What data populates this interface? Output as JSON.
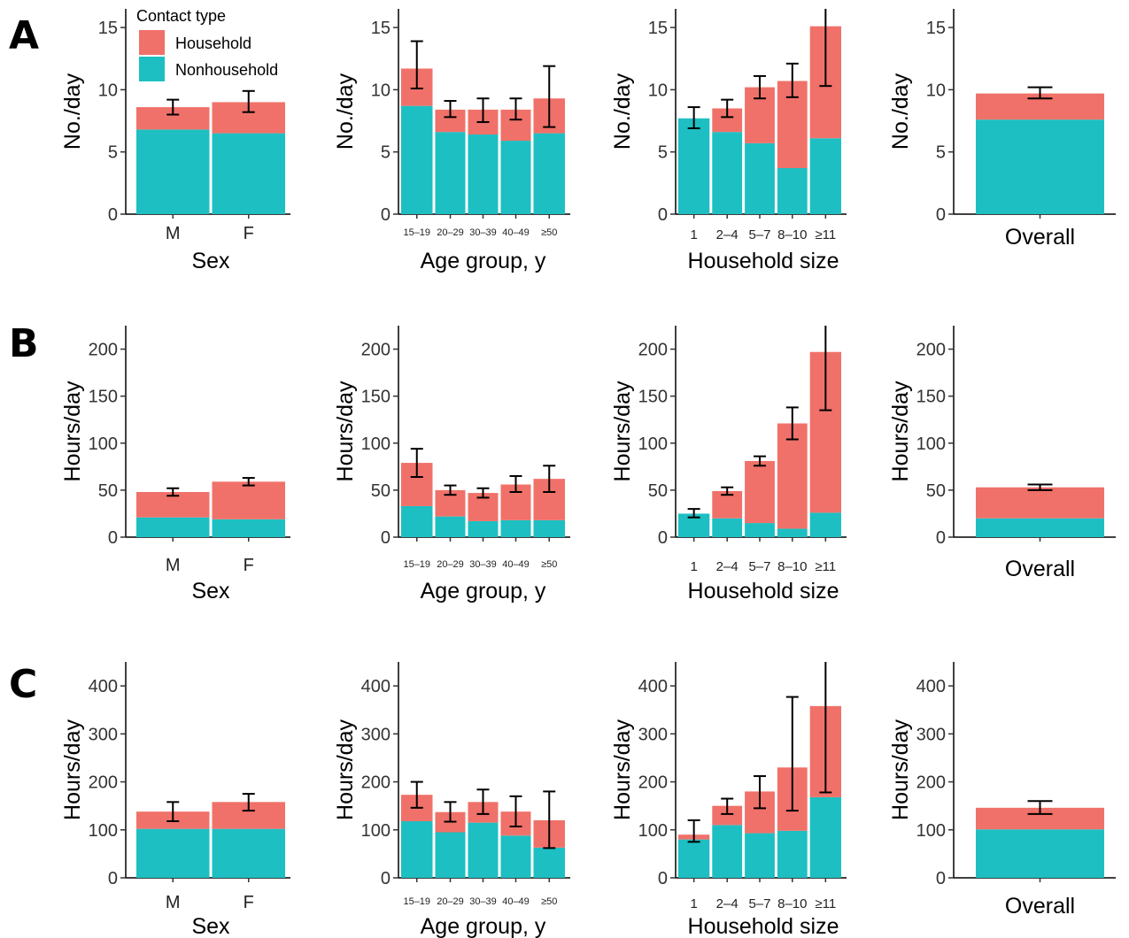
{
  "colors": {
    "household": "#f07169",
    "nonhousehold": "#1dbfc2",
    "axis": "#000000",
    "errorbar": "#000000"
  },
  "legend": {
    "title": "Contact type",
    "items": [
      {
        "label": "Household",
        "color": "#f07169"
      },
      {
        "label": "Nonhousehold",
        "color": "#1dbfc2"
      }
    ],
    "placement": "inside top of first panel (row A, Sex)"
  },
  "chart_data": [
    {
      "panel": "A",
      "type": "bar",
      "stacked": true,
      "ylabel": "No./day",
      "xlabel": "Sex",
      "ylim": [
        0,
        16.5
      ],
      "yticks": [
        0,
        5,
        10,
        15
      ],
      "categories": [
        "M",
        "F"
      ],
      "series": [
        {
          "name": "Nonhousehold",
          "values": [
            6.8,
            6.5
          ]
        },
        {
          "name": "Household",
          "values": [
            1.8,
            2.5
          ]
        }
      ],
      "totals": [
        8.6,
        9.0
      ],
      "errors": [
        [
          8.0,
          9.2
        ],
        [
          8.2,
          9.9
        ]
      ]
    },
    {
      "panel": "A",
      "type": "bar",
      "stacked": true,
      "ylabel": "No./day",
      "xlabel": "Age group, y",
      "ylim": [
        0,
        16.5
      ],
      "yticks": [
        0,
        5,
        10,
        15
      ],
      "categories": [
        "15–19",
        "20–29",
        "30–39",
        "40–49",
        "≥50"
      ],
      "series": [
        {
          "name": "Nonhousehold",
          "values": [
            8.7,
            6.6,
            6.4,
            5.9,
            6.5
          ]
        },
        {
          "name": "Household",
          "values": [
            3.0,
            1.8,
            2.0,
            2.5,
            2.8
          ]
        }
      ],
      "totals": [
        11.7,
        8.4,
        8.4,
        8.4,
        9.3
      ],
      "errors": [
        [
          10.1,
          13.9
        ],
        [
          7.8,
          9.1
        ],
        [
          7.4,
          9.3
        ],
        [
          7.6,
          9.3
        ],
        [
          7.0,
          11.9
        ]
      ]
    },
    {
      "panel": "A",
      "type": "bar",
      "stacked": true,
      "ylabel": "No./day",
      "xlabel": "Household size",
      "ylim": [
        0,
        16.5
      ],
      "yticks": [
        0,
        5,
        10,
        15
      ],
      "categories": [
        "1",
        "2–4",
        "5–7",
        "8–10",
        "≥11"
      ],
      "series": [
        {
          "name": "Nonhousehold",
          "values": [
            7.7,
            6.6,
            5.7,
            3.7,
            6.1
          ]
        },
        {
          "name": "Household",
          "values": [
            0.0,
            1.9,
            4.5,
            7.0,
            9.0
          ]
        }
      ],
      "totals": [
        7.7,
        8.5,
        10.2,
        10.7,
        15.1
      ],
      "errors": [
        [
          6.9,
          8.6
        ],
        [
          7.8,
          9.2
        ],
        [
          9.3,
          11.1
        ],
        [
          9.4,
          12.1
        ],
        [
          10.3,
          16.5
        ]
      ]
    },
    {
      "panel": "A",
      "type": "bar",
      "stacked": true,
      "ylabel": "No./day",
      "xlabel": "",
      "ylim": [
        0,
        16.5
      ],
      "yticks": [
        0,
        5,
        10,
        15
      ],
      "categories": [
        "Overall"
      ],
      "series": [
        {
          "name": "Nonhousehold",
          "values": [
            7.6
          ]
        },
        {
          "name": "Household",
          "values": [
            2.1
          ]
        }
      ],
      "totals": [
        9.7
      ],
      "errors": [
        [
          9.3,
          10.2
        ]
      ]
    },
    {
      "panel": "B",
      "type": "bar",
      "stacked": true,
      "ylabel": "Hours/day",
      "xlabel": "Sex",
      "ylim": [
        0,
        225
      ],
      "yticks": [
        0,
        50,
        100,
        150,
        200
      ],
      "categories": [
        "M",
        "F"
      ],
      "series": [
        {
          "name": "Nonhousehold",
          "values": [
            21,
            19
          ]
        },
        {
          "name": "Household",
          "values": [
            27,
            40
          ]
        }
      ],
      "totals": [
        48,
        59
      ],
      "errors": [
        [
          44,
          52
        ],
        [
          55,
          63
        ]
      ]
    },
    {
      "panel": "B",
      "type": "bar",
      "stacked": true,
      "ylabel": "Hours/day",
      "xlabel": "Age group, y",
      "ylim": [
        0,
        225
      ],
      "yticks": [
        0,
        50,
        100,
        150,
        200
      ],
      "categories": [
        "15–19",
        "20–29",
        "30–39",
        "40–49",
        "≥50"
      ],
      "series": [
        {
          "name": "Nonhousehold",
          "values": [
            33,
            22,
            17,
            18,
            18
          ]
        },
        {
          "name": "Household",
          "values": [
            46,
            28,
            30,
            38,
            44
          ]
        }
      ],
      "totals": [
        79,
        50,
        47,
        56,
        62
      ],
      "errors": [
        [
          64,
          94
        ],
        [
          45,
          55
        ],
        [
          42,
          52
        ],
        [
          48,
          65
        ],
        [
          48,
          76
        ]
      ]
    },
    {
      "panel": "B",
      "type": "bar",
      "stacked": true,
      "ylabel": "Hours/day",
      "xlabel": "Household size",
      "ylim": [
        0,
        225
      ],
      "yticks": [
        0,
        50,
        100,
        150,
        200
      ],
      "categories": [
        "1",
        "2–4",
        "5–7",
        "8–10",
        "≥11"
      ],
      "series": [
        {
          "name": "Nonhousehold",
          "values": [
            25,
            20,
            15,
            9,
            26
          ]
        },
        {
          "name": "Household",
          "values": [
            0,
            29,
            66,
            112,
            171
          ]
        }
      ],
      "totals": [
        25,
        49,
        81,
        121,
        197
      ],
      "errors": [
        [
          21,
          30
        ],
        [
          45,
          53
        ],
        [
          76,
          86
        ],
        [
          104,
          138
        ],
        [
          135,
          225
        ]
      ]
    },
    {
      "panel": "B",
      "type": "bar",
      "stacked": true,
      "ylabel": "Hours/day",
      "xlabel": "",
      "ylim": [
        0,
        225
      ],
      "yticks": [
        0,
        50,
        100,
        150,
        200
      ],
      "categories": [
        "Overall"
      ],
      "series": [
        {
          "name": "Nonhousehold",
          "values": [
            20
          ]
        },
        {
          "name": "Household",
          "values": [
            33
          ]
        }
      ],
      "totals": [
        53
      ],
      "errors": [
        [
          50,
          56
        ]
      ]
    },
    {
      "panel": "C",
      "type": "bar",
      "stacked": true,
      "ylabel": "Hours/day",
      "xlabel": "Sex",
      "ylim": [
        0,
        450
      ],
      "yticks": [
        0,
        100,
        200,
        300,
        400
      ],
      "categories": [
        "M",
        "F"
      ],
      "series": [
        {
          "name": "Nonhousehold",
          "values": [
            102,
            102
          ]
        },
        {
          "name": "Household",
          "values": [
            36,
            56
          ]
        }
      ],
      "totals": [
        138,
        158
      ],
      "errors": [
        [
          118,
          158
        ],
        [
          140,
          175
        ]
      ]
    },
    {
      "panel": "C",
      "type": "bar",
      "stacked": true,
      "ylabel": "Hours/day",
      "xlabel": "Age group, y",
      "ylim": [
        0,
        450
      ],
      "yticks": [
        0,
        100,
        200,
        300,
        400
      ],
      "categories": [
        "15–19",
        "20–29",
        "30–39",
        "40–49",
        "≥50"
      ],
      "series": [
        {
          "name": "Nonhousehold",
          "values": [
            118,
            95,
            115,
            88,
            63
          ]
        },
        {
          "name": "Household",
          "values": [
            55,
            42,
            43,
            50,
            57
          ]
        }
      ],
      "totals": [
        173,
        137,
        158,
        138,
        120
      ],
      "errors": [
        [
          146,
          200
        ],
        [
          117,
          158
        ],
        [
          133,
          184
        ],
        [
          107,
          170
        ],
        [
          62,
          180
        ]
      ]
    },
    {
      "panel": "C",
      "type": "bar",
      "stacked": true,
      "ylabel": "Hours/day",
      "xlabel": "Household size",
      "ylim": [
        0,
        450
      ],
      "yticks": [
        0,
        100,
        200,
        300,
        400
      ],
      "categories": [
        "1",
        "2–4",
        "5–7",
        "8–10",
        "≥11"
      ],
      "series": [
        {
          "name": "Nonhousehold",
          "values": [
            80,
            110,
            93,
            98,
            168
          ]
        },
        {
          "name": "Household",
          "values": [
            10,
            40,
            87,
            132,
            190
          ]
        }
      ],
      "totals": [
        90,
        150,
        180,
        230,
        358
      ],
      "errors": [
        [
          75,
          120
        ],
        [
          133,
          165
        ],
        [
          145,
          212
        ],
        [
          140,
          377
        ],
        [
          178,
          450
        ]
      ]
    },
    {
      "panel": "C",
      "type": "bar",
      "stacked": true,
      "ylabel": "Hours/day",
      "xlabel": "",
      "ylim": [
        0,
        450
      ],
      "yticks": [
        0,
        100,
        200,
        300,
        400
      ],
      "categories": [
        "Overall"
      ],
      "series": [
        {
          "name": "Nonhousehold",
          "values": [
            101
          ]
        },
        {
          "name": "Household",
          "values": [
            45
          ]
        }
      ],
      "totals": [
        146
      ],
      "errors": [
        [
          133,
          160
        ]
      ]
    }
  ]
}
